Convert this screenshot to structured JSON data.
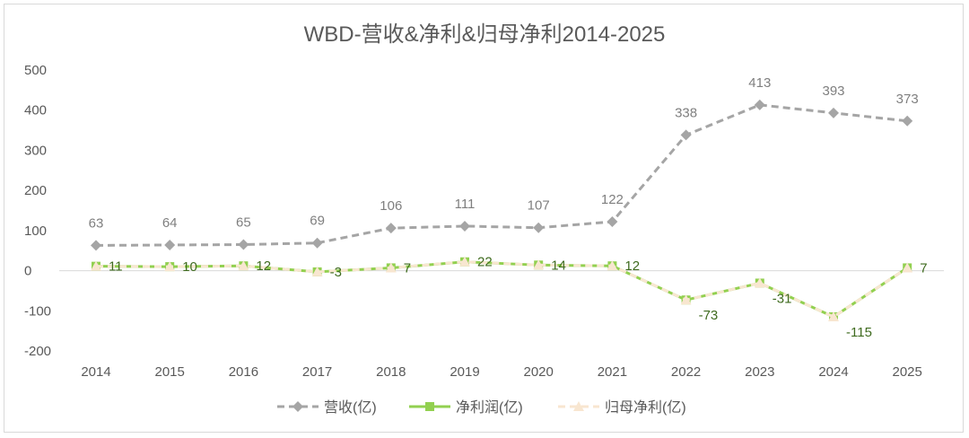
{
  "chart_data": {
    "type": "line",
    "title": "WBD-营收&净利&归母净利2014-2025",
    "categories": [
      "2014",
      "2015",
      "2016",
      "2017",
      "2018",
      "2019",
      "2020",
      "2021",
      "2022",
      "2023",
      "2024",
      "2025"
    ],
    "ylim": [
      -200,
      500
    ],
    "yticks": [
      "500",
      "400",
      "300",
      "200",
      "100",
      "0",
      "-100",
      "-200"
    ],
    "ytick_values": [
      500,
      400,
      300,
      200,
      100,
      0,
      -100,
      -200
    ],
    "legend_position": "bottom",
    "series": [
      {
        "name": "营收(亿)",
        "values": [
          63,
          64,
          65,
          69,
          106,
          111,
          107,
          122,
          338,
          413,
          393,
          373
        ],
        "labels": [
          "63",
          "64",
          "65",
          "69",
          "106",
          "111",
          "107",
          "122",
          "338",
          "413",
          "393",
          "373"
        ],
        "color": "#a5a5a5",
        "marker": "diamond",
        "dash": true
      },
      {
        "name": "净利润(亿)",
        "values": [
          11,
          10,
          12,
          -3,
          7,
          22,
          14,
          12,
          -73,
          -31,
          -115,
          7
        ],
        "labels": [
          "11",
          "10",
          "12",
          "-3",
          "7",
          "22",
          "14",
          "12",
          "-73",
          "-31",
          "-115",
          "7"
        ],
        "color": "#92d050",
        "marker": "square",
        "dash": false
      },
      {
        "name": "归母净利(亿)",
        "values": [
          11,
          10,
          12,
          -3,
          7,
          22,
          14,
          12,
          -73,
          -31,
          -115,
          7
        ],
        "color": "#f8e6d0",
        "marker": "triangle",
        "dash": true
      }
    ]
  }
}
